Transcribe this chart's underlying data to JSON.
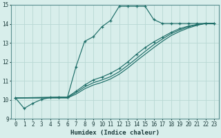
{
  "xlabel": "Humidex (Indice chaleur)",
  "xlim": [
    -0.5,
    23.5
  ],
  "ylim": [
    9,
    15
  ],
  "xticks": [
    0,
    1,
    2,
    3,
    4,
    5,
    6,
    7,
    8,
    9,
    10,
    11,
    12,
    13,
    14,
    15,
    16,
    17,
    18,
    19,
    20,
    21,
    22,
    23
  ],
  "yticks": [
    9,
    10,
    11,
    12,
    13,
    14,
    15
  ],
  "bg_color": "#d8eeeb",
  "grid_color": "#b8d8d4",
  "line_color": "#1e6e68",
  "line1_x": [
    0,
    1,
    2,
    3,
    4,
    5,
    6,
    7,
    8,
    9,
    10,
    11,
    12,
    13,
    14,
    15,
    16,
    17,
    18,
    19,
    20,
    21,
    22,
    23
  ],
  "line1_y": [
    10.1,
    9.55,
    9.82,
    10.02,
    10.12,
    10.12,
    10.12,
    11.75,
    13.08,
    13.32,
    13.85,
    14.18,
    14.92,
    14.92,
    14.92,
    14.92,
    14.22,
    14.02,
    14.02,
    14.02,
    14.02,
    14.02,
    14.02,
    14.02
  ],
  "line2_x": [
    0,
    5,
    6,
    7,
    8,
    9,
    10,
    11,
    12,
    13,
    14,
    15,
    16,
    17,
    18,
    19,
    20,
    21,
    22,
    23
  ],
  "line2_y": [
    10.1,
    10.15,
    10.15,
    10.45,
    10.78,
    11.05,
    11.2,
    11.4,
    11.65,
    12.0,
    12.4,
    12.75,
    13.05,
    13.3,
    13.55,
    13.75,
    13.88,
    13.96,
    14.02,
    14.02
  ],
  "line3_x": [
    0,
    5,
    6,
    7,
    8,
    9,
    10,
    11,
    12,
    13,
    14,
    15,
    16,
    17,
    18,
    19,
    20,
    21,
    22,
    23
  ],
  "line3_y": [
    10.1,
    10.12,
    10.12,
    10.38,
    10.68,
    10.9,
    11.05,
    11.22,
    11.48,
    11.82,
    12.18,
    12.55,
    12.9,
    13.2,
    13.48,
    13.68,
    13.84,
    13.96,
    14.02,
    14.02
  ],
  "line4_x": [
    0,
    5,
    6,
    7,
    8,
    9,
    10,
    11,
    12,
    13,
    14,
    15,
    16,
    17,
    18,
    19,
    20,
    21,
    22,
    23
  ],
  "line4_y": [
    10.1,
    10.1,
    10.1,
    10.3,
    10.58,
    10.78,
    10.92,
    11.1,
    11.35,
    11.68,
    12.05,
    12.4,
    12.75,
    13.08,
    13.38,
    13.6,
    13.78,
    13.92,
    14.02,
    14.02
  ]
}
